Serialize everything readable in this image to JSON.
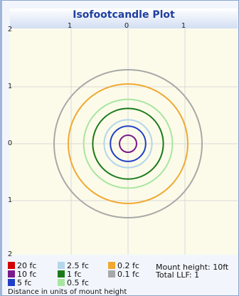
{
  "chart_data": {
    "type": "isofootcandle-contour",
    "title": "Isofootcandle Plot",
    "x_tick_labels": [
      "1",
      "0",
      "1"
    ],
    "y_tick_labels": [
      "2",
      "1",
      "0",
      "1",
      "2"
    ],
    "xlim": [
      -2,
      2
    ],
    "ylim": [
      -2,
      2
    ],
    "background_color": "#fcfbea",
    "title_color": "#1f3f9f",
    "contours": [
      {
        "label": "20 fc",
        "color": "#d40000",
        "radius": null
      },
      {
        "label": "10 fc",
        "color": "#7a1a8c",
        "radius": 0.15
      },
      {
        "label": "5 fc",
        "color": "#1f3fc8",
        "radius": 0.31
      },
      {
        "label": "2.5 fc",
        "color": "#b4d6ea",
        "radius": 0.42
      },
      {
        "label": "1 fc",
        "color": "#1a7a1a",
        "radius": 0.62
      },
      {
        "label": "0.5 fc",
        "color": "#a8e6a0",
        "radius": 0.78
      },
      {
        "label": "0.2 fc",
        "color": "#f0a830",
        "radius": 1.05
      },
      {
        "label": "0.1 fc",
        "color": "#a8a8a8",
        "radius": 1.3
      }
    ],
    "info": {
      "mount_height": "Mount height: 10ft",
      "total_llf": "Total LLF: 1"
    },
    "footer": "Distance in units of mount height"
  }
}
